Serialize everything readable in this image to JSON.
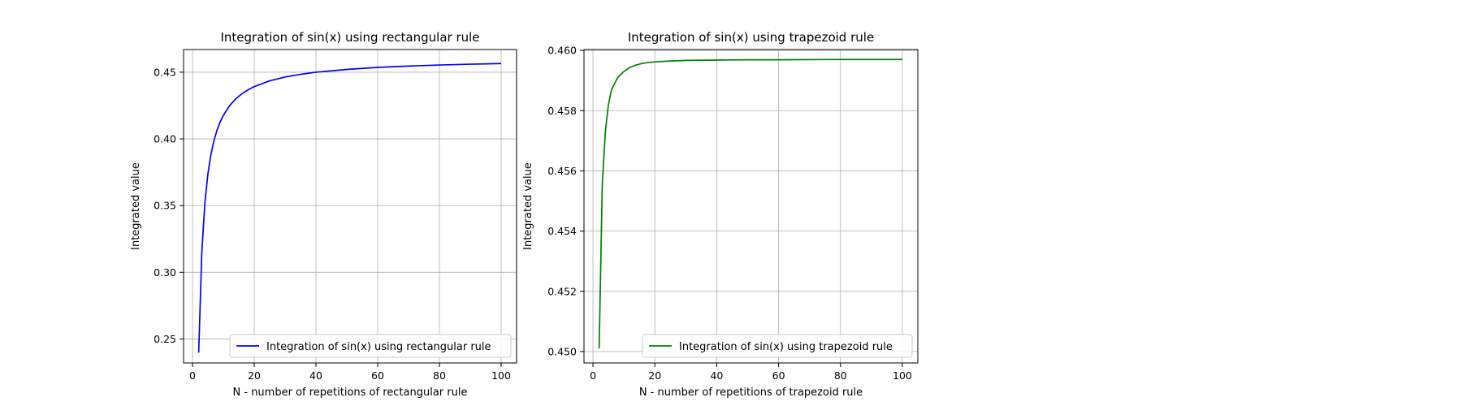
{
  "chart_data": [
    {
      "type": "line",
      "title": "Integration of sin(x) using rectangular rule",
      "xlabel": "N - number of repetitions of rectangular rule",
      "ylabel": "Integrated value",
      "xlim": [
        -2.9,
        105
      ],
      "ylim": [
        0.232,
        0.467
      ],
      "xticks": [
        0,
        20,
        40,
        60,
        80,
        100
      ],
      "xtick_labels": [
        "0",
        "20",
        "40",
        "60",
        "80",
        "100"
      ],
      "yticks": [
        0.25,
        0.3,
        0.35,
        0.4,
        0.45
      ],
      "ytick_labels": [
        "0.25",
        "0.30",
        "0.35",
        "0.40",
        "0.45"
      ],
      "grid": true,
      "legend_position": "lower-right",
      "series": [
        {
          "name": "Integration of sin(x) using rectangular rule",
          "color": "#0000ff",
          "x": [
            2,
            3,
            4,
            5,
            6,
            7,
            8,
            9,
            10,
            12,
            14,
            16,
            18,
            20,
            25,
            30,
            35,
            40,
            50,
            60,
            70,
            80,
            90,
            100
          ],
          "y": [
            0.2397,
            0.3143,
            0.3518,
            0.374,
            0.3887,
            0.3992,
            0.4069,
            0.4129,
            0.4177,
            0.4249,
            0.43,
            0.4338,
            0.4368,
            0.4392,
            0.4435,
            0.4464,
            0.4484,
            0.45,
            0.4521,
            0.4536,
            0.4546,
            0.4554,
            0.456,
            0.4565
          ]
        }
      ]
    },
    {
      "type": "line",
      "title": "Integration of sin(x) using trapezoid rule",
      "xlabel": "N - number of repetitions of trapezoid rule",
      "ylabel": "Integrated value",
      "xlim": [
        -2.9,
        105
      ],
      "ylim": [
        0.44962,
        0.46003
      ],
      "xticks": [
        0,
        20,
        40,
        60,
        80,
        100
      ],
      "xtick_labels": [
        "0",
        "20",
        "40",
        "60",
        "80",
        "100"
      ],
      "yticks": [
        0.45,
        0.452,
        0.454,
        0.456,
        0.458,
        0.46
      ],
      "ytick_labels": [
        "0.450",
        "0.452",
        "0.454",
        "0.456",
        "0.458",
        "0.460"
      ],
      "grid": true,
      "legend_position": "lower-right",
      "series": [
        {
          "name": "Integration of sin(x) using trapezoid rule",
          "color": "#008000",
          "x": [
            2,
            3,
            4,
            5,
            6,
            7,
            8,
            9,
            10,
            12,
            14,
            16,
            18,
            20,
            25,
            30,
            40,
            50,
            60,
            80,
            100
          ],
          "y": [
            0.4501,
            0.4555,
            0.4573,
            0.4582,
            0.4587,
            0.4589,
            0.4591,
            0.4592,
            0.4593,
            0.45944,
            0.45952,
            0.45957,
            0.4596,
            0.45962,
            0.45965,
            0.45967,
            0.45968,
            0.45969,
            0.45969,
            0.4597,
            0.4597
          ]
        }
      ]
    }
  ]
}
